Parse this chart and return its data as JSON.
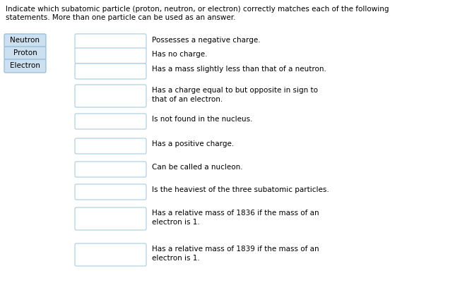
{
  "title_line1": "Indicate which subatomic particle (proton, neutron, or electron) correctly matches each of the following",
  "title_line2": "statements. More than one particle can be used as an answer.",
  "particles": [
    "Neutron",
    "Proton",
    "Electron"
  ],
  "particle_bg": "#cce0f0",
  "particle_border": "#88b8d8",
  "box_bg": "#ffffff",
  "box_border": "#a8cce0",
  "statements": [
    "Possesses a negative charge.",
    "Has no charge.",
    "Has a mass slightly less than that of a neutron.",
    "Has a charge equal to but opposite in sign to\nthat of an electron.",
    "Is not found in the nucleus.",
    "Has a positive charge.",
    "Can be called a nucleon.",
    "Is the heaviest of the three subatomic particles.",
    "Has a relative mass of 1836 if the mass of an\nelectron is 1.",
    "Has a relative mass of 1839 if the mass of an\nelectron is 1."
  ],
  "bg_color": "#ffffff",
  "text_color": "#000000",
  "font_size": 7.5,
  "title_font_size": 7.5,
  "particle_font_size": 7.5
}
